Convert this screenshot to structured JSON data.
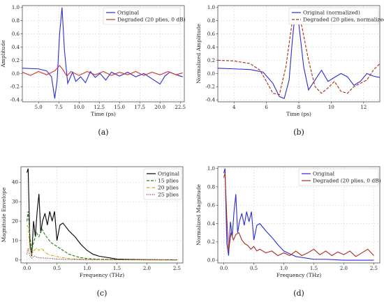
{
  "chart_data": [
    {
      "id": "a",
      "type": "line",
      "panel_label": "(a)",
      "xlabel": "Time (ps)",
      "ylabel": "Amplitude",
      "xlim": [
        3.0,
        23.0
      ],
      "ylim": [
        -0.43,
        1.03
      ],
      "xticks": [
        5.0,
        7.5,
        10.0,
        12.5,
        15.0,
        17.5,
        20.0,
        22.5
      ],
      "xtick_labels": [
        "5.0",
        "7.5",
        "10.0",
        "12.5",
        "15.0",
        "17.5",
        "20.0",
        "22.5"
      ],
      "yticks": [
        -0.4,
        -0.2,
        0.0,
        0.2,
        0.4,
        0.6,
        0.8,
        1.0
      ],
      "ytick_labels": [
        "-0.4",
        "-0.2",
        "0.0",
        "0.2",
        "0.4",
        "0.6",
        "0.8",
        "1.0"
      ],
      "legend_position": "top-right",
      "series": [
        {
          "name": "Original",
          "color": "#2b2bd6",
          "dash": "solid",
          "x": [
            3.0,
            5.0,
            6.0,
            6.6,
            7.0,
            7.3,
            7.6,
            7.9,
            8.2,
            8.6,
            9.2,
            9.6,
            10.2,
            10.8,
            11.4,
            12.0,
            12.6,
            13.3,
            14.0,
            15.0,
            16.0,
            17.0,
            18.0,
            19.0,
            20.0,
            20.6,
            21.2,
            22.0,
            22.8
          ],
          "y": [
            0.08,
            0.07,
            0.04,
            -0.05,
            -0.38,
            -0.1,
            0.6,
            1.0,
            0.35,
            -0.15,
            0.02,
            -0.12,
            -0.05,
            -0.14,
            0.03,
            -0.06,
            0.0,
            -0.1,
            0.02,
            -0.04,
            0.02,
            -0.05,
            0.0,
            -0.08,
            -0.16,
            -0.04,
            0.02,
            -0.02,
            -0.05
          ]
        },
        {
          "name": "Degraded (20 plies, 0 dB)",
          "color": "#cc3333",
          "dash": "solid",
          "x": [
            3.0,
            4.0,
            5.0,
            6.0,
            7.0,
            7.6,
            8.0,
            8.5,
            9.0,
            10.0,
            11.0,
            12.0,
            13.0,
            14.0,
            15.0,
            16.0,
            17.0,
            18.0,
            19.0,
            20.0,
            21.0,
            22.0,
            22.8
          ],
          "y": [
            0.02,
            -0.03,
            0.03,
            -0.02,
            0.04,
            0.12,
            0.06,
            -0.04,
            0.03,
            -0.03,
            0.03,
            -0.02,
            0.03,
            -0.03,
            0.02,
            -0.02,
            0.03,
            -0.03,
            0.02,
            -0.02,
            0.03,
            -0.02,
            0.01
          ]
        }
      ]
    },
    {
      "id": "b",
      "type": "line",
      "panel_label": "(b)",
      "xlabel": "Time (ps)",
      "ylabel": "Normalized Amplitude",
      "xlim": [
        3.0,
        13.0
      ],
      "ylim": [
        -0.43,
        1.03
      ],
      "xticks": [
        4,
        6,
        8,
        10,
        12
      ],
      "xtick_labels": [
        "4",
        "6",
        "8",
        "10",
        "12"
      ],
      "yticks": [
        -0.4,
        -0.2,
        0.0,
        0.2,
        0.4,
        0.6,
        0.8,
        1.0
      ],
      "ytick_labels": [
        "-0.4",
        "-0.2",
        "0.0",
        "0.2",
        "0.4",
        "0.6",
        "0.8",
        "1.0"
      ],
      "legend_position": "top-right",
      "series": [
        {
          "name": "Original (normalized)",
          "color": "#2b2bd6",
          "dash": "solid",
          "x": [
            3.0,
            4.0,
            5.0,
            5.8,
            6.4,
            6.8,
            7.1,
            7.4,
            7.6,
            7.8,
            8.0,
            8.3,
            8.6,
            9.0,
            9.4,
            9.8,
            10.2,
            10.6,
            11.0,
            11.4,
            11.8,
            12.2,
            12.6,
            13.0
          ],
          "y": [
            0.08,
            0.07,
            0.06,
            0.02,
            -0.15,
            -0.35,
            -0.38,
            -0.1,
            0.5,
            0.98,
            0.75,
            0.1,
            -0.25,
            -0.1,
            0.05,
            -0.12,
            -0.06,
            0.0,
            -0.05,
            -0.18,
            -0.12,
            0.0,
            -0.04,
            -0.06
          ]
        },
        {
          "name": "Degraded (20 plies, normalized)",
          "color": "#aa2a1a",
          "dash": "dashed",
          "x": [
            3.0,
            4.0,
            5.0,
            5.6,
            6.0,
            6.4,
            6.8,
            7.2,
            7.6,
            7.9,
            8.2,
            8.6,
            9.0,
            9.4,
            9.8,
            10.2,
            10.6,
            11.0,
            11.4,
            11.8,
            12.2,
            12.6,
            13.0
          ],
          "y": [
            0.2,
            0.19,
            0.15,
            0.05,
            -0.12,
            -0.3,
            -0.32,
            0.1,
            0.8,
            0.97,
            0.7,
            0.2,
            -0.2,
            -0.3,
            -0.22,
            -0.12,
            -0.27,
            -0.3,
            -0.2,
            -0.15,
            -0.1,
            0.05,
            0.15
          ]
        }
      ]
    },
    {
      "id": "c",
      "type": "line",
      "panel_label": "(c)",
      "xlabel": "Frequency (THz)",
      "ylabel": "Magnitude Envelope",
      "xlim": [
        -0.1,
        2.6
      ],
      "ylim": [
        -1.5,
        48.0
      ],
      "xticks": [
        0.0,
        0.5,
        1.0,
        1.5,
        2.0,
        2.5
      ],
      "xtick_labels": [
        "0.0",
        "0.5",
        "1.0",
        "1.5",
        "2.0",
        "2.5"
      ],
      "yticks": [
        0,
        10,
        20,
        30,
        40
      ],
      "ytick_labels": [
        "0",
        "10",
        "20",
        "30",
        "40"
      ],
      "legend_position": "top-right",
      "series": [
        {
          "name": "Original",
          "color": "#000000",
          "dash": "solid",
          "x": [
            0.0,
            0.02,
            0.05,
            0.08,
            0.11,
            0.14,
            0.17,
            0.2,
            0.23,
            0.26,
            0.3,
            0.34,
            0.38,
            0.42,
            0.46,
            0.5,
            0.55,
            0.6,
            0.65,
            0.7,
            0.8,
            0.9,
            1.0,
            1.1,
            1.2,
            1.3,
            1.4,
            1.5,
            1.7,
            2.0,
            2.5
          ],
          "y": [
            45,
            47,
            8,
            2,
            20,
            12,
            25,
            34,
            14,
            20,
            24,
            18,
            25,
            20,
            25,
            10,
            18,
            19,
            17,
            15,
            12,
            8,
            5,
            3,
            2,
            1.5,
            1,
            0.5,
            0.3,
            0.2,
            0.1
          ]
        },
        {
          "name": "15 plies",
          "color": "#2a7a2a",
          "dash": "dashed",
          "x": [
            0.0,
            0.02,
            0.05,
            0.08,
            0.12,
            0.16,
            0.2,
            0.25,
            0.3,
            0.35,
            0.4,
            0.45,
            0.5,
            0.6,
            0.7,
            0.8,
            0.9,
            1.0,
            1.2,
            1.5,
            2.0,
            2.5
          ],
          "y": [
            20,
            25,
            12,
            5,
            10,
            14,
            12,
            16,
            13,
            11,
            9,
            8,
            7,
            5,
            3,
            2,
            1.2,
            0.8,
            0.4,
            0.2,
            0.1,
            0.1
          ]
        },
        {
          "name": "20 plies",
          "color": "#d4a017",
          "dash": "dashdot",
          "x": [
            0.0,
            0.02,
            0.05,
            0.08,
            0.12,
            0.16,
            0.2,
            0.25,
            0.3,
            0.35,
            0.4,
            0.5,
            0.6,
            0.7,
            0.8,
            1.0,
            1.5,
            2.0,
            2.5
          ],
          "y": [
            18,
            17,
            6,
            3,
            5,
            6,
            5,
            6,
            4,
            3,
            2.5,
            1.8,
            1.2,
            0.8,
            0.5,
            0.3,
            0.2,
            0.1,
            0.1
          ]
        },
        {
          "name": "25 plies",
          "color": "#7a1a1a",
          "dash": "dotted",
          "x": [
            0.0,
            0.02,
            0.05,
            0.08,
            0.12,
            0.16,
            0.2,
            0.3,
            0.4,
            0.5,
            0.7,
            1.0,
            1.5,
            2.0,
            2.5
          ],
          "y": [
            3,
            6,
            2,
            1,
            2,
            1.5,
            1.2,
            1,
            0.8,
            0.5,
            0.3,
            0.2,
            0.1,
            0.1,
            0.1
          ]
        }
      ]
    },
    {
      "id": "d",
      "type": "line",
      "panel_label": "(d)",
      "xlabel": "Frequency (THz)",
      "ylabel": "Normalized Magnitude",
      "xlim": [
        -0.1,
        2.6
      ],
      "ylim": [
        -0.03,
        1.02
      ],
      "xticks": [
        0.0,
        0.5,
        1.0,
        1.5,
        2.0,
        2.5
      ],
      "xtick_labels": [
        "0.0",
        "0.5",
        "1.0",
        "1.5",
        "2.0",
        "2.5"
      ],
      "yticks": [
        0.0,
        0.2,
        0.4,
        0.6,
        0.8,
        1.0
      ],
      "ytick_labels": [
        "0.0",
        "0.2",
        "0.4",
        "0.6",
        "0.8",
        "1.0"
      ],
      "legend_position": "top-right",
      "series": [
        {
          "name": "Original",
          "color": "#2b2bd6",
          "dash": "solid",
          "x": [
            0.0,
            0.02,
            0.05,
            0.08,
            0.11,
            0.14,
            0.17,
            0.2,
            0.23,
            0.26,
            0.3,
            0.34,
            0.38,
            0.42,
            0.46,
            0.5,
            0.55,
            0.6,
            0.65,
            0.7,
            0.8,
            0.9,
            1.0,
            1.1,
            1.2,
            1.3,
            1.4,
            1.5,
            1.7,
            2.0,
            2.5
          ],
          "y": [
            0.95,
            1.0,
            0.18,
            0.05,
            0.42,
            0.26,
            0.53,
            0.72,
            0.3,
            0.42,
            0.51,
            0.38,
            0.53,
            0.42,
            0.53,
            0.22,
            0.38,
            0.4,
            0.36,
            0.32,
            0.25,
            0.17,
            0.1,
            0.07,
            0.04,
            0.03,
            0.02,
            0.01,
            0.01,
            0.0,
            0.0
          ]
        },
        {
          "name": "Degraded (20 plies, 0 dB)",
          "color": "#aa2a1a",
          "dash": "solid",
          "x": [
            0.0,
            0.02,
            0.05,
            0.08,
            0.12,
            0.16,
            0.2,
            0.25,
            0.3,
            0.35,
            0.4,
            0.45,
            0.5,
            0.55,
            0.6,
            0.7,
            0.8,
            0.9,
            1.0,
            1.1,
            1.2,
            1.3,
            1.4,
            1.5,
            1.6,
            1.7,
            1.8,
            1.9,
            2.0,
            2.1,
            2.2,
            2.3,
            2.4,
            2.5
          ],
          "y": [
            0.9,
            0.95,
            0.45,
            0.1,
            0.3,
            0.22,
            0.28,
            0.3,
            0.22,
            0.18,
            0.16,
            0.12,
            0.15,
            0.1,
            0.12,
            0.08,
            0.1,
            0.05,
            0.08,
            0.05,
            0.1,
            0.05,
            0.08,
            0.12,
            0.06,
            0.1,
            0.05,
            0.09,
            0.06,
            0.1,
            0.04,
            0.08,
            0.12,
            0.05
          ]
        }
      ]
    }
  ]
}
